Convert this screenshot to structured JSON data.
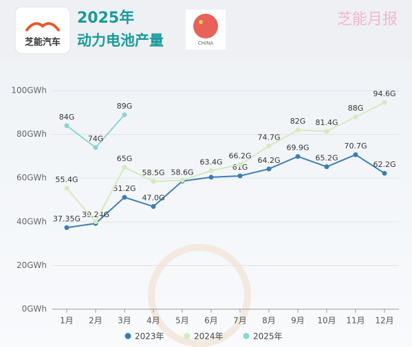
{
  "header": {
    "logo_text": "芝能汽车",
    "flag_label": "CHINA",
    "watermark": "芝能月报"
  },
  "chart_data": {
    "type": "line",
    "title": "2025年",
    "subtitle": "动力电池产量",
    "categories": [
      "1月",
      "2月",
      "3月",
      "4月",
      "5月",
      "6月",
      "7月",
      "8月",
      "9月",
      "10月",
      "11月",
      "12月"
    ],
    "series": [
      {
        "name": "2023年",
        "color": "#3b7db3",
        "values": [
          37.35,
          39.24,
          51.2,
          47.0,
          58.6,
          60.4,
          61,
          64.2,
          69.9,
          65.2,
          70.7,
          62.2
        ],
        "value_labels": [
          "37.35G",
          "39.24G",
          "51.2G",
          "47.0G",
          "58.6G",
          null,
          "61G",
          "64.2G",
          "69.9G",
          "65.2G",
          "70.7G",
          "62.2G"
        ]
      },
      {
        "name": "2024年",
        "color": "#d3ebbd",
        "values": [
          55.4,
          40,
          65,
          58.5,
          59,
          63.4,
          66.2,
          74.7,
          82,
          81.4,
          88,
          94.6
        ],
        "value_labels": [
          "55.4G",
          null,
          "65G",
          "58.5G",
          null,
          "63.4G",
          "66.2G",
          "74.7G",
          "82G",
          "81.4G",
          "88G",
          "94.6G"
        ]
      },
      {
        "name": "2025年",
        "color": "#8dd2d2",
        "values": [
          84,
          74,
          89,
          null,
          null,
          null,
          null,
          null,
          null,
          null,
          null,
          null
        ],
        "value_labels": [
          "84G",
          "74G",
          "89G",
          null,
          null,
          null,
          null,
          null,
          null,
          null,
          null,
          null
        ]
      }
    ],
    "ylim": [
      0,
      100
    ],
    "yticks": [
      {
        "value": 0,
        "label": "0GWh"
      },
      {
        "value": 20,
        "label": "20GWh"
      },
      {
        "value": 40,
        "label": "40GWh"
      },
      {
        "value": 60,
        "label": "60GWh"
      },
      {
        "value": 80,
        "label": "80GWh"
      },
      {
        "value": 100,
        "label": "100GWh"
      }
    ],
    "grid": true,
    "legend": "bottom"
  }
}
